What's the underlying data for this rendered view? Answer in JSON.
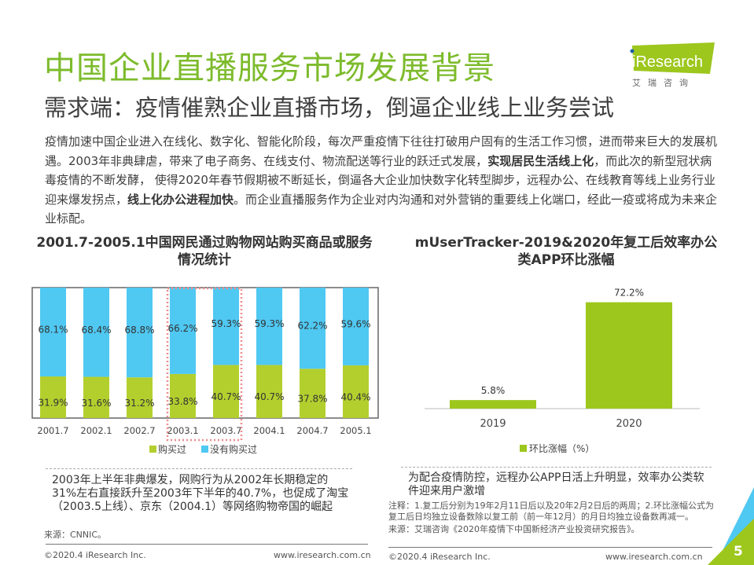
{
  "header": {
    "title": "中国企业直播服务市场发展背景",
    "subtitle": "需求端：疫情催熟企业直播市场，倒逼企业线上业务尝试",
    "logo": {
      "brand": "iResearch",
      "cn": "艾 瑞 咨 询",
      "color": "#9dc71d"
    }
  },
  "intro": {
    "p1": "疫情加速中国企业进入在线化、数字化、智能化阶段，每次严重疫情下往往打破用户固有的生活工作习惯，进而带来巨大的发展机遇。2003年非典肆虐，带来了电子商务、在线支付、物流配送等行业的跃迁式发展，",
    "b1": "实现居民生活线上化",
    "p2": "，而此次的新型冠状病毒疫情的不断发酵， 使得2020年春节假期被不断延长，倒逼各大企业加快数字化转型脚步，远程办公、在线教育等线上业务行业迎来爆发拐点，",
    "b2": "线上化办公进程加快",
    "p3": "。而企业直播服务作为企业对内沟通和对外营销的重要线上化端口，经此一疫或将成为未来企业标配。"
  },
  "chart_data": [
    {
      "type": "bar",
      "stacked": true,
      "title": "2001.7-2005.1中国网民通过购物网站购买商品或服务情况统计",
      "categories": [
        "2001.7",
        "2002.1",
        "2002.7",
        "2003.1",
        "2003.7",
        "2004.1",
        "2004.7",
        "2005.1"
      ],
      "series": [
        {
          "name": "购买过",
          "color": "#b3cf2e",
          "values": [
            31.9,
            31.6,
            31.2,
            33.8,
            40.7,
            40.7,
            37.8,
            40.4
          ]
        },
        {
          "name": "没有购买过",
          "color": "#4fc8f2",
          "values": [
            68.1,
            68.4,
            68.8,
            66.2,
            59.3,
            59.3,
            62.2,
            59.6
          ]
        }
      ],
      "ylim": [
        0,
        100
      ],
      "unit": "%",
      "highlight": [
        "2003.1",
        "2003.7"
      ],
      "legend": "bottom"
    },
    {
      "type": "bar",
      "title": "mUserTracker-2019&2020年复工后效率办公类APP环比涨幅",
      "categories": [
        "2019",
        "2020"
      ],
      "series": [
        {
          "name": "环比涨幅（%）",
          "color": "#9dc71d",
          "values": [
            5.8,
            72.2
          ]
        }
      ],
      "ylim": [
        0,
        80
      ],
      "unit": "%",
      "legend": "bottom"
    }
  ],
  "left_panel": {
    "note": "2003年上半年非典爆发，网购行为从2002年长期稳定的31%左右直接跃升至2003年下半年的40.7%，也促成了淘宝（2003.5上线）、京东（2004.1）等网络购物帝国的崛起",
    "source": "来源：CNNIC。"
  },
  "right_panel": {
    "note": "为配合疫情防控，远程办公APP日活上升明显，效率办公类软件迎来用户激增",
    "footnote1": "注释：1.复工后分别为19年2月11日后以及20年2月2日后的两周；2.环比涨幅公式为复工后日均独立设备数除以复工前（前一年12月）的月日均独立设备数再减一。",
    "source": "来源：艾瑞咨询《2020年疫情下中国新经济产业投资研究报告》。"
  },
  "footer": {
    "copyright": "©2020.4 iResearch Inc.",
    "url": "www.iresearch.com.cn",
    "page": "5"
  }
}
